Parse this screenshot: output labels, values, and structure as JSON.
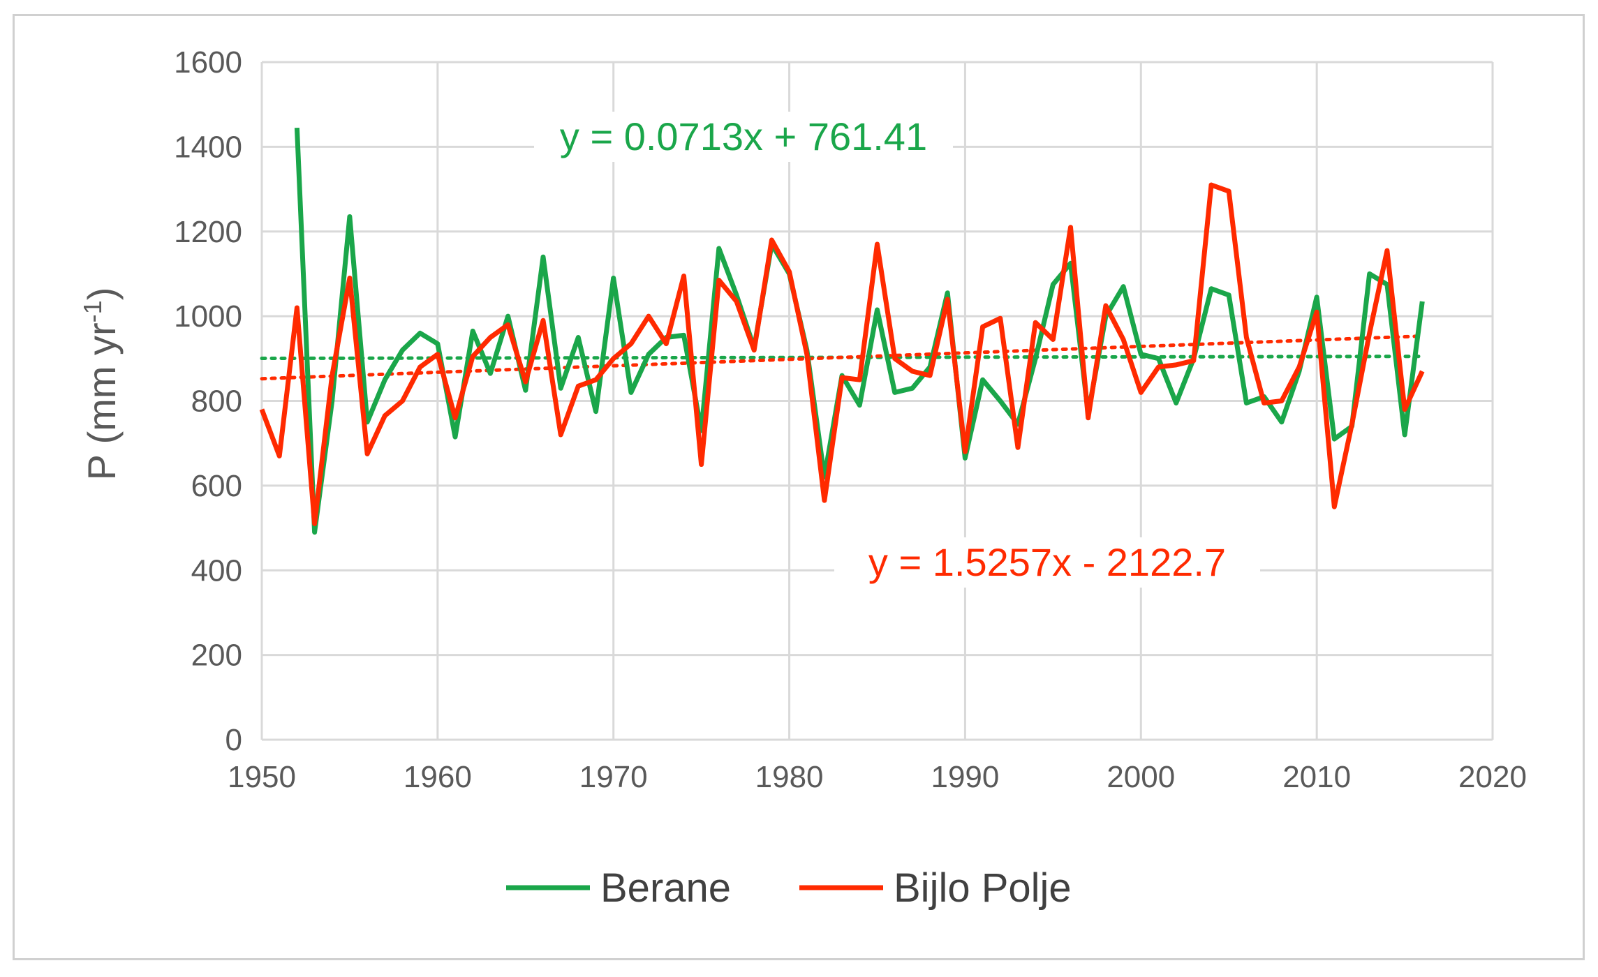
{
  "chart_data": {
    "type": "line",
    "title": "",
    "xlabel": "",
    "ylabel": "P (mm yr",
    "ylabel_sup": "-1",
    "ylabel_close": ")",
    "xlim": [
      1950,
      2020
    ],
    "ylim": [
      0,
      1600
    ],
    "xticks": [
      1950,
      1960,
      1970,
      1980,
      1990,
      2000,
      2010,
      2020
    ],
    "yticks": [
      0,
      200,
      400,
      600,
      800,
      1000,
      1200,
      1400,
      1600
    ],
    "grid": true,
    "legend_position": "bottom",
    "x": [
      1950,
      1951,
      1952,
      1953,
      1954,
      1955,
      1956,
      1957,
      1958,
      1959,
      1960,
      1961,
      1962,
      1963,
      1964,
      1965,
      1966,
      1967,
      1968,
      1969,
      1970,
      1971,
      1972,
      1973,
      1974,
      1975,
      1976,
      1977,
      1978,
      1979,
      1980,
      1981,
      1982,
      1983,
      1984,
      1985,
      1986,
      1987,
      1988,
      1989,
      1990,
      1991,
      1992,
      1993,
      1994,
      1995,
      1996,
      1997,
      1998,
      1999,
      2000,
      2001,
      2002,
      2003,
      2004,
      2005,
      2006,
      2007,
      2008,
      2009,
      2010,
      2011,
      2012,
      2013,
      2014,
      2015,
      2016
    ],
    "series": [
      {
        "name": "Berane",
        "color": "#1aa64a",
        "values": [
          null,
          null,
          1445,
          490,
          800,
          1235,
          750,
          850,
          920,
          960,
          935,
          715,
          965,
          865,
          1000,
          825,
          1140,
          830,
          950,
          775,
          1090,
          820,
          910,
          950,
          955,
          730,
          1160,
          1050,
          925,
          1170,
          1100,
          920,
          620,
          860,
          790,
          1015,
          820,
          830,
          880,
          1055,
          665,
          850,
          800,
          745,
          900,
          1075,
          1125,
          770,
          1000,
          1070,
          910,
          900,
          795,
          900,
          1065,
          1050,
          795,
          810,
          750,
          870,
          1045,
          710,
          740,
          1100,
          1075,
          720,
          1035
        ],
        "trend": {
          "slope": 0.0713,
          "intercept": 761.41,
          "label": "y = 0.0713x + 761.41"
        }
      },
      {
        "name": "Bijlo Polje",
        "color": "#ff2a00",
        "values": [
          780,
          670,
          1020,
          510,
          860,
          1090,
          675,
          765,
          800,
          880,
          910,
          760,
          905,
          950,
          980,
          845,
          990,
          720,
          835,
          850,
          900,
          935,
          1000,
          935,
          1095,
          650,
          1085,
          1035,
          920,
          1180,
          1105,
          910,
          565,
          855,
          850,
          1170,
          900,
          870,
          860,
          1040,
          680,
          975,
          995,
          690,
          985,
          945,
          1210,
          760,
          1025,
          945,
          820,
          880,
          885,
          895,
          1310,
          1295,
          950,
          795,
          800,
          880,
          1010,
          550,
          745,
          960,
          1155,
          780,
          870
        ],
        "trend": {
          "slope": 1.5257,
          "intercept": -2122.7,
          "label": "y = 1.5257x - 2122.7"
        }
      }
    ]
  }
}
